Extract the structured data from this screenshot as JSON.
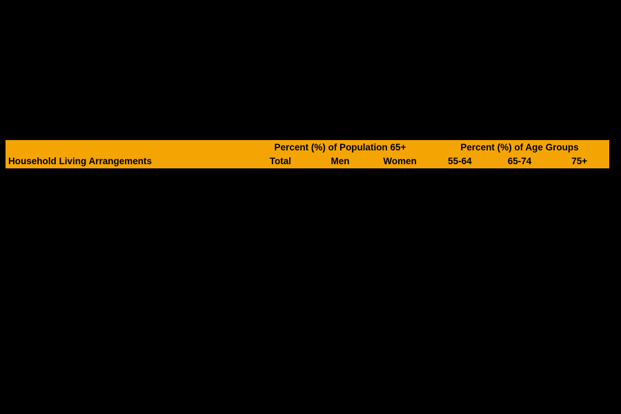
{
  "table": {
    "row_header": "Household Living Arrangements",
    "group_headers": [
      {
        "label": "Percent (%) of Population 65+",
        "spans_columns": [
          "Total",
          "Men",
          "Women"
        ]
      },
      {
        "label": "Percent (%) of Age Groups",
        "spans_columns": [
          "55-64",
          "65-74",
          "75+"
        ]
      }
    ],
    "columns": [
      "Total",
      "Men",
      "Women",
      "55-64",
      "65-74",
      "75+"
    ],
    "colors": {
      "header_bg": "#F4A504",
      "header_text": "#000000",
      "canvas_bg": "#000000"
    }
  }
}
